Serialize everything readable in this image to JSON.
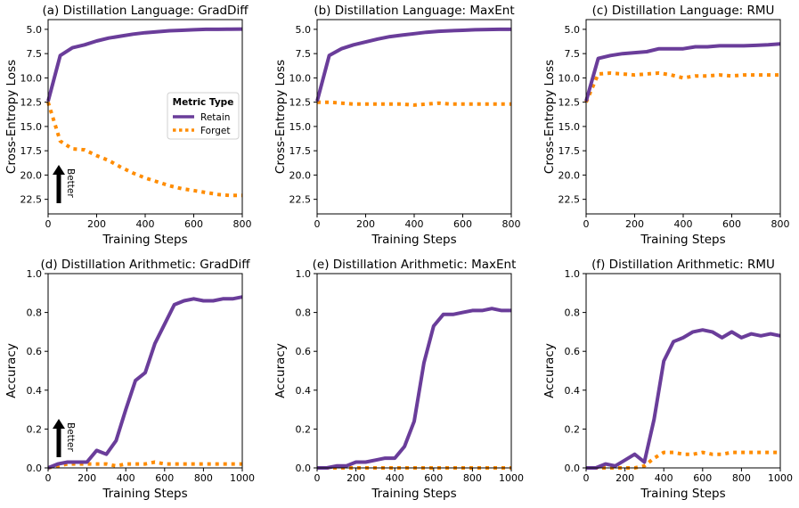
{
  "colors": {
    "retain": "#6a3d9a",
    "forget": "#ff8c00",
    "axis": "#000000"
  },
  "legend": {
    "title": "Metric Type",
    "retain_label": "Retain",
    "forget_label": "Forget"
  },
  "better_label": "Better",
  "chart_data": [
    {
      "type": "line",
      "title": "(a) Distillation Language: GradDiff",
      "xlabel": "Training Steps",
      "ylabel": "Cross-Entropy Loss",
      "xlim": [
        0,
        800
      ],
      "ylim": [
        24,
        4
      ],
      "y_inverted": true,
      "xticks": [
        0,
        200,
        400,
        600,
        800
      ],
      "yticks": [
        5.0,
        7.5,
        10.0,
        12.5,
        15.0,
        17.5,
        20.0,
        22.5
      ],
      "ytick_labels": [
        "5.0",
        "7.5",
        "10.0",
        "12.5",
        "15.0",
        "17.5",
        "20.0",
        "22.5"
      ],
      "legend_position": "center-right",
      "better_arrow": true,
      "series": [
        {
          "name": "Retain",
          "x": [
            0,
            50,
            100,
            150,
            200,
            250,
            300,
            350,
            400,
            450,
            500,
            550,
            600,
            650,
            700,
            750,
            800
          ],
          "values": [
            12.4,
            7.7,
            6.9,
            6.6,
            6.2,
            5.9,
            5.7,
            5.5,
            5.35,
            5.25,
            5.15,
            5.1,
            5.05,
            5.0,
            5.0,
            4.98,
            4.97
          ]
        },
        {
          "name": "Forget",
          "x": [
            0,
            50,
            100,
            150,
            200,
            250,
            300,
            350,
            400,
            450,
            500,
            550,
            600,
            650,
            700,
            750,
            800
          ],
          "values": [
            12.5,
            16.5,
            17.3,
            17.4,
            18.0,
            18.5,
            19.2,
            19.8,
            20.3,
            20.7,
            21.1,
            21.4,
            21.6,
            21.8,
            22.0,
            22.1,
            22.1
          ]
        }
      ]
    },
    {
      "type": "line",
      "title": "(b) Distillation Language: MaxEnt",
      "xlabel": "Training Steps",
      "ylabel": "Cross-Entropy Loss",
      "xlim": [
        0,
        800
      ],
      "ylim": [
        24,
        4
      ],
      "y_inverted": true,
      "xticks": [
        0,
        200,
        400,
        600,
        800
      ],
      "yticks": [
        5.0,
        7.5,
        10.0,
        12.5,
        15.0,
        17.5,
        20.0,
        22.5
      ],
      "ytick_labels": [
        "5.0",
        "7.5",
        "10.0",
        "12.5",
        "15.0",
        "17.5",
        "20.0",
        "22.5"
      ],
      "series": [
        {
          "name": "Retain",
          "x": [
            0,
            50,
            100,
            150,
            200,
            250,
            300,
            350,
            400,
            450,
            500,
            550,
            600,
            650,
            700,
            750,
            800
          ],
          "values": [
            12.4,
            7.7,
            7.0,
            6.6,
            6.3,
            6.0,
            5.75,
            5.6,
            5.45,
            5.3,
            5.2,
            5.15,
            5.1,
            5.05,
            5.02,
            5.0,
            5.0
          ]
        },
        {
          "name": "Forget",
          "x": [
            0,
            50,
            100,
            150,
            200,
            250,
            300,
            350,
            400,
            450,
            500,
            550,
            600,
            650,
            700,
            750,
            800
          ],
          "values": [
            12.5,
            12.5,
            12.6,
            12.7,
            12.7,
            12.7,
            12.7,
            12.7,
            12.8,
            12.7,
            12.6,
            12.7,
            12.7,
            12.7,
            12.7,
            12.7,
            12.7
          ]
        }
      ]
    },
    {
      "type": "line",
      "title": "(c) Distillation Language: RMU",
      "xlabel": "Training Steps",
      "ylabel": "Cross-Entropy Loss",
      "xlim": [
        0,
        800
      ],
      "ylim": [
        24,
        4
      ],
      "y_inverted": true,
      "xticks": [
        0,
        200,
        400,
        600,
        800
      ],
      "yticks": [
        5.0,
        7.5,
        10.0,
        12.5,
        15.0,
        17.5,
        20.0,
        22.5
      ],
      "ytick_labels": [
        "5.0",
        "7.5",
        "10.0",
        "12.5",
        "15.0",
        "17.5",
        "20.0",
        "22.5"
      ],
      "series": [
        {
          "name": "Retain",
          "x": [
            0,
            50,
            100,
            150,
            200,
            250,
            300,
            350,
            400,
            450,
            500,
            550,
            600,
            650,
            700,
            750,
            800
          ],
          "values": [
            12.4,
            8.0,
            7.7,
            7.5,
            7.4,
            7.3,
            7.0,
            7.0,
            7.0,
            6.8,
            6.8,
            6.7,
            6.7,
            6.7,
            6.65,
            6.6,
            6.5
          ]
        },
        {
          "name": "Forget",
          "x": [
            0,
            50,
            100,
            150,
            200,
            250,
            300,
            350,
            400,
            450,
            500,
            550,
            600,
            650,
            700,
            750,
            800
          ],
          "values": [
            12.5,
            9.6,
            9.5,
            9.6,
            9.7,
            9.6,
            9.5,
            9.7,
            10.0,
            9.8,
            9.8,
            9.7,
            9.8,
            9.7,
            9.7,
            9.7,
            9.7
          ]
        }
      ]
    },
    {
      "type": "line",
      "title": "(d) Distillation Arithmetic: GradDiff",
      "xlabel": "Training Steps",
      "ylabel": "Accuracy",
      "xlim": [
        0,
        1000
      ],
      "ylim": [
        0,
        1.0
      ],
      "xticks": [
        0,
        200,
        400,
        600,
        800,
        1000
      ],
      "yticks": [
        0.0,
        0.2,
        0.4,
        0.6,
        0.8,
        1.0
      ],
      "ytick_labels": [
        "0.0",
        "0.2",
        "0.4",
        "0.6",
        "0.8",
        "1.0"
      ],
      "better_arrow": true,
      "series": [
        {
          "name": "Retain",
          "x": [
            0,
            50,
            100,
            150,
            200,
            250,
            300,
            350,
            400,
            450,
            500,
            550,
            600,
            650,
            700,
            750,
            800,
            850,
            900,
            950,
            1000
          ],
          "values": [
            0.0,
            0.02,
            0.03,
            0.03,
            0.03,
            0.09,
            0.07,
            0.14,
            0.3,
            0.45,
            0.49,
            0.64,
            0.74,
            0.84,
            0.86,
            0.87,
            0.86,
            0.86,
            0.87,
            0.87,
            0.88
          ]
        },
        {
          "name": "Forget",
          "x": [
            0,
            50,
            100,
            150,
            200,
            250,
            300,
            350,
            400,
            450,
            500,
            550,
            600,
            650,
            700,
            750,
            800,
            850,
            900,
            950,
            1000
          ],
          "values": [
            0.0,
            0.01,
            0.02,
            0.02,
            0.02,
            0.02,
            0.02,
            0.01,
            0.02,
            0.02,
            0.02,
            0.03,
            0.02,
            0.02,
            0.02,
            0.02,
            0.02,
            0.02,
            0.02,
            0.02,
            0.02
          ]
        }
      ]
    },
    {
      "type": "line",
      "title": "(e) Distillation Arithmetic: MaxEnt",
      "xlabel": "Training Steps",
      "ylabel": "Accuracy",
      "xlim": [
        0,
        1000
      ],
      "ylim": [
        0,
        1.0
      ],
      "xticks": [
        0,
        200,
        400,
        600,
        800,
        1000
      ],
      "yticks": [
        0.0,
        0.2,
        0.4,
        0.6,
        0.8,
        1.0
      ],
      "ytick_labels": [
        "0.0",
        "0.2",
        "0.4",
        "0.6",
        "0.8",
        "1.0"
      ],
      "series": [
        {
          "name": "Retain",
          "x": [
            0,
            50,
            100,
            150,
            200,
            250,
            300,
            350,
            400,
            450,
            500,
            550,
            600,
            650,
            700,
            750,
            800,
            850,
            900,
            950,
            1000
          ],
          "values": [
            0.0,
            0.0,
            0.01,
            0.01,
            0.03,
            0.03,
            0.04,
            0.05,
            0.05,
            0.11,
            0.24,
            0.54,
            0.73,
            0.79,
            0.79,
            0.8,
            0.81,
            0.81,
            0.82,
            0.81,
            0.81
          ]
        },
        {
          "name": "Forget",
          "x": [
            0,
            100,
            200,
            300,
            400,
            500,
            600,
            700,
            800,
            900,
            1000
          ],
          "values": [
            0.0,
            0.0,
            0.0,
            0.0,
            0.0,
            0.0,
            0.0,
            0.0,
            0.0,
            0.0,
            0.0
          ]
        }
      ]
    },
    {
      "type": "line",
      "title": "(f) Distillation Arithmetic: RMU",
      "xlabel": "Training Steps",
      "ylabel": "Accuracy",
      "xlim": [
        0,
        1000
      ],
      "ylim": [
        0,
        1.0
      ],
      "xticks": [
        0,
        200,
        400,
        600,
        800,
        1000
      ],
      "yticks": [
        0.0,
        0.2,
        0.4,
        0.6,
        0.8,
        1.0
      ],
      "ytick_labels": [
        "0.0",
        "0.2",
        "0.4",
        "0.6",
        "0.8",
        "1.0"
      ],
      "series": [
        {
          "name": "Retain",
          "x": [
            0,
            50,
            100,
            150,
            200,
            250,
            300,
            350,
            400,
            450,
            500,
            550,
            600,
            650,
            700,
            750,
            800,
            850,
            900,
            950,
            1000
          ],
          "values": [
            0.0,
            0.0,
            0.02,
            0.01,
            0.04,
            0.07,
            0.03,
            0.25,
            0.55,
            0.65,
            0.67,
            0.7,
            0.71,
            0.7,
            0.67,
            0.7,
            0.67,
            0.69,
            0.68,
            0.69,
            0.68
          ]
        },
        {
          "name": "Forget",
          "x": [
            0,
            50,
            100,
            150,
            200,
            250,
            300,
            350,
            400,
            450,
            500,
            550,
            600,
            650,
            700,
            750,
            800,
            850,
            900,
            950,
            1000
          ],
          "values": [
            0.0,
            0.0,
            0.0,
            0.0,
            0.0,
            0.0,
            0.01,
            0.05,
            0.08,
            0.08,
            0.07,
            0.07,
            0.08,
            0.07,
            0.07,
            0.08,
            0.08,
            0.08,
            0.08,
            0.08,
            0.08
          ]
        }
      ]
    }
  ]
}
